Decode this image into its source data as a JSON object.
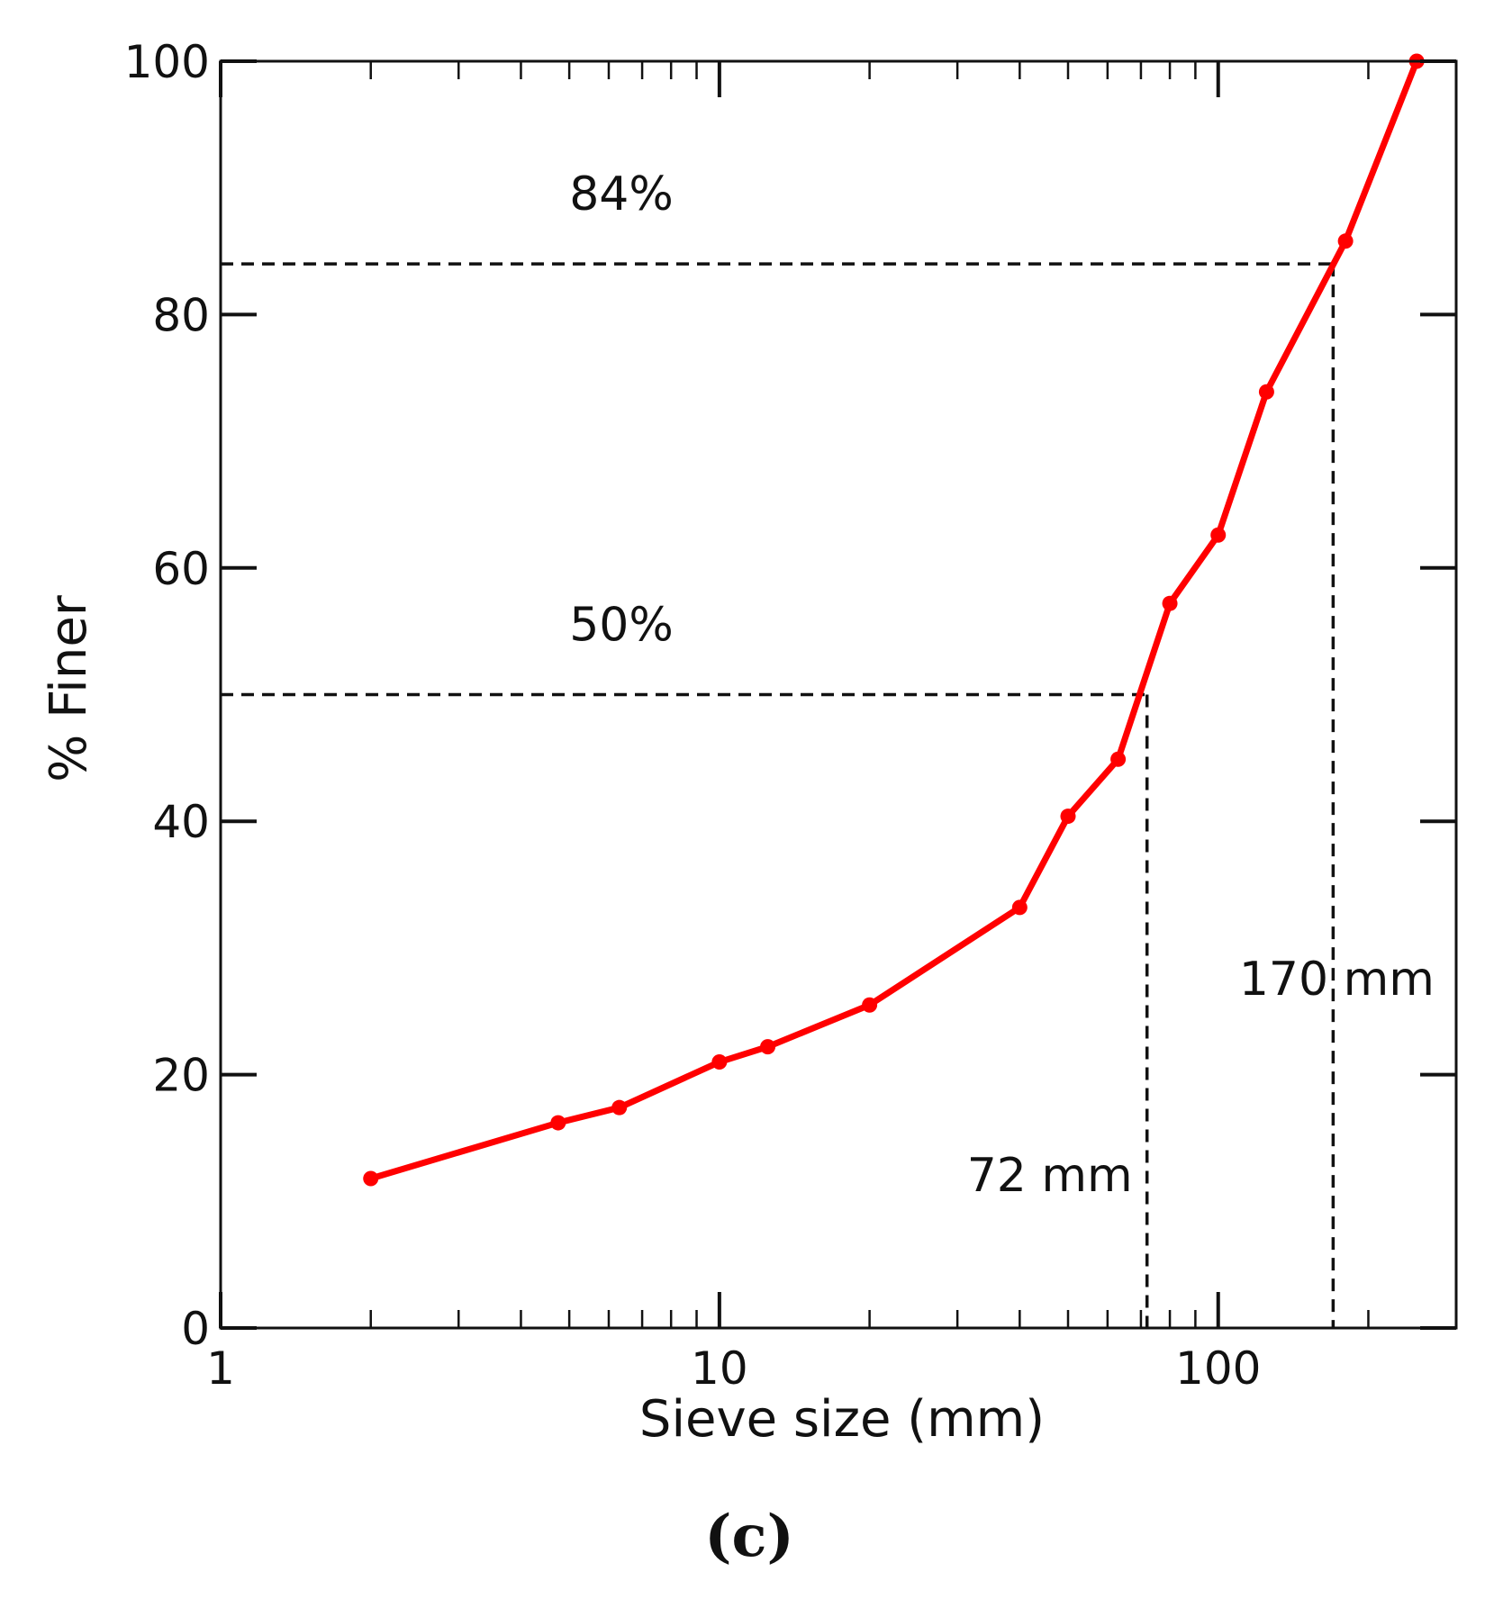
{
  "chart_data": {
    "type": "line",
    "xlabel": "Sieve size (mm)",
    "ylabel": "% Finer",
    "xscale": "log",
    "xlim": [
      1,
      300
    ],
    "ylim": [
      0,
      100
    ],
    "x_ticks": [
      {
        "value": 1,
        "label": "1"
      },
      {
        "value": 10,
        "label": "10"
      },
      {
        "value": 100,
        "label": "100"
      }
    ],
    "y_ticks": [
      {
        "value": 0,
        "label": "0"
      },
      {
        "value": 20,
        "label": "20"
      },
      {
        "value": 40,
        "label": "40"
      },
      {
        "value": 60,
        "label": "60"
      },
      {
        "value": 80,
        "label": "80"
      },
      {
        "value": 100,
        "label": "100"
      }
    ],
    "grid": false,
    "series": [
      {
        "color": "#ff0000",
        "points": [
          {
            "x": 2,
            "y": 11.8
          },
          {
            "x": 4.75,
            "y": 16.2
          },
          {
            "x": 6.3,
            "y": 17.4
          },
          {
            "x": 10,
            "y": 21.0
          },
          {
            "x": 12.5,
            "y": 22.2
          },
          {
            "x": 20,
            "y": 25.5
          },
          {
            "x": 40,
            "y": 33.2
          },
          {
            "x": 50,
            "y": 40.4
          },
          {
            "x": 63,
            "y": 44.9
          },
          {
            "x": 80,
            "y": 57.2
          },
          {
            "x": 100,
            "y": 62.6
          },
          {
            "x": 125,
            "y": 73.9
          },
          {
            "x": 180,
            "y": 85.8
          },
          {
            "x": 250,
            "y": 100.0
          }
        ]
      }
    ],
    "reference_lines": [
      {
        "percent": 50,
        "size": 72,
        "percent_label": "50%",
        "size_label": "72 mm"
      },
      {
        "percent": 84,
        "size": 170,
        "percent_label": "84%",
        "size_label": "170 mm"
      }
    ],
    "panel_label": "(c)"
  }
}
